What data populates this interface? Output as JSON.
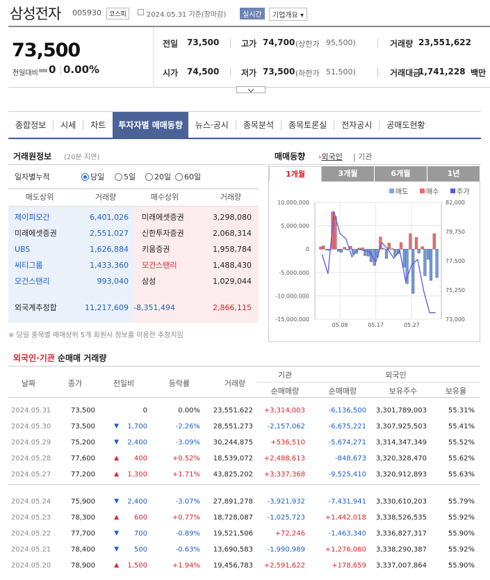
{
  "header": {
    "name": "삼성전자",
    "code": "005930",
    "market": "코스피",
    "date": "2024.05.31 기준(장마감)",
    "live": "실시간",
    "overview": "기업개요 ▾"
  },
  "quote": {
    "price": "73,500",
    "prev_label": "전일대비",
    "change": "0",
    "rate": "0.00%",
    "rows": [
      [
        {
          "label": "전일",
          "value": "73,500",
          "color": "normal"
        },
        {
          "label": "고가",
          "value": "74,700",
          "color": "up",
          "sub_label": "(상한가",
          "sub_value": "95,500)"
        },
        {
          "label": "거래량",
          "value": "23,551,622",
          "color": "normal"
        }
      ],
      [
        {
          "label": "시가",
          "value": "74,500",
          "color": "up"
        },
        {
          "label": "저가",
          "value": "73,500",
          "color": "normal",
          "sub_label": "(하한가",
          "sub_value": "51,500)"
        },
        {
          "label": "거래대금",
          "value": "1,741,228",
          "color": "normal",
          "unit": "백만"
        }
      ]
    ]
  },
  "tabs": [
    "종합정보",
    "시세",
    "차트",
    "투자자별 매매동향",
    "뉴스·공시",
    "종목분석",
    "종목토론실",
    "전자공시",
    "공매도현황"
  ],
  "active_tab": 3,
  "broker": {
    "title": "거래원정보",
    "note": "(20분 지연)",
    "accum_label": "일자별누적",
    "periods": [
      "당일",
      "5일",
      "20일",
      "60일"
    ],
    "selected_period": 0,
    "headers": [
      "매도상위",
      "거래량",
      "매수상위",
      "거래량"
    ],
    "rows": [
      {
        "sell": "제이피모간",
        "sell_vol": "6,401,026",
        "buy": "미래에셋증권",
        "buy_vol": "3,298,080",
        "sell_color": "dn",
        "buy_color": "normal"
      },
      {
        "sell": "미래에셋증권",
        "sell_vol": "2,551,027",
        "buy": "신한투자증권",
        "buy_vol": "2,068,314",
        "sell_color": "normal",
        "buy_color": "normal"
      },
      {
        "sell": "UBS",
        "sell_vol": "1,626,884",
        "buy": "키움증권",
        "buy_vol": "1,958,784",
        "sell_color": "dn",
        "buy_color": "normal"
      },
      {
        "sell": "씨티그룹",
        "sell_vol": "1,433,360",
        "buy": "모건스탠리",
        "buy_vol": "1,488,430",
        "sell_color": "dn",
        "buy_color": "up"
      },
      {
        "sell": "모건스탠리",
        "sell_vol": "993,040",
        "buy": "삼성",
        "buy_vol": "1,029,044",
        "sell_color": "dn",
        "buy_color": "normal"
      }
    ],
    "foreign_label": "외국계추정합",
    "foreign_sell": "11,217,609",
    "foreign_net": "-8,351,494",
    "foreign_buy": "2,866,115",
    "footnote": "※ 당일 종목별 매매상위 5개 회원사 정보를 이용한 추정치임"
  },
  "trend": {
    "title": "매매동향",
    "foreign_link": "외국인",
    "inst_link": "기관",
    "periods": [
      "1개월",
      "3개월",
      "6개월",
      "1년"
    ],
    "selected_period": 0,
    "legend": [
      {
        "name": "매도",
        "color": "#7aa7e8"
      },
      {
        "name": "매수",
        "color": "#ef6b6b"
      },
      {
        "name": "주가",
        "color": "#5a5ae0"
      }
    ],
    "colors": {
      "sell": "#6f9ae0",
      "buy": "#ef6b6b",
      "price": "#5a5ae0"
    }
  },
  "chart_data": {
    "type": "bar+line",
    "y_left": {
      "ticks": [
        "10,000,000",
        "5,000,000",
        "0",
        "-5,000,000",
        "-10,000,000",
        "-15,000,000"
      ],
      "range": [
        -15000000,
        10000000
      ]
    },
    "y_right": {
      "ticks": [
        "82,000",
        "79,750",
        "77,500",
        "75,250",
        "73,000"
      ],
      "range": [
        73000,
        82000
      ]
    },
    "x_ticks": [
      "05.08",
      "05.17",
      "05.27"
    ],
    "dates": [
      "05.02",
      "05.03",
      "05.07",
      "05.08",
      "05.09",
      "05.10",
      "05.13",
      "05.14",
      "05.16",
      "05.17",
      "05.20",
      "05.21",
      "05.22",
      "05.23",
      "05.24",
      "05.27",
      "05.28",
      "05.29",
      "05.30",
      "05.31"
    ],
    "series": [
      {
        "name": "기관",
        "values": [
          500000,
          -200000,
          8000000,
          -500000,
          400000,
          600000,
          -900000,
          300000,
          -1500000,
          -3500000,
          2600000,
          -2000000,
          72000,
          -1000000,
          -3900000,
          3300000,
          2500000,
          537000,
          -2200000,
          3300000
        ]
      },
      {
        "name": "외국인",
        "values": [
          700000,
          -300000,
          7000000,
          -700000,
          -200000,
          -1100000,
          200000,
          -1400000,
          -2700000,
          -1800000,
          200000,
          1300000,
          -1500000,
          1400000,
          -7400000,
          -9500000,
          -850000,
          -5700000,
          -6700000,
          -6100000
        ]
      },
      {
        "name": "주가",
        "values": [
          78000,
          76500,
          81300,
          79600,
          79200,
          77800,
          78400,
          78300,
          78200,
          77400,
          78900,
          78400,
          77700,
          78300,
          75900,
          77200,
          77600,
          75200,
          73500,
          73500
        ]
      }
    ]
  },
  "lower": {
    "title_foreign": "외국인",
    "title_dot": "·",
    "title_inst": "기관",
    "title_rest": "순매매 거래량",
    "headers": {
      "date": "날짜",
      "close": "종가",
      "change": "전일비",
      "rate": "등락률",
      "volume": "거래량",
      "inst": "기관",
      "inst_net": "순매매량",
      "foreign": "외국인",
      "foreign_net": "순매매량",
      "foreign_hold": "보유주수",
      "foreign_ratio": "보유율"
    },
    "rows": [
      {
        "date": "2024.05.31",
        "close": "73,500",
        "arrow": "",
        "chg": "0",
        "dir": "none",
        "rate": "0.00%",
        "vol": "23,551,622",
        "inst": "+3,314,003",
        "frg": "-6,136,500",
        "hold": "3,301,789,003",
        "ratio": "55.31%"
      },
      {
        "date": "2024.05.30",
        "close": "73,500",
        "arrow": "▼",
        "chg": "1,700",
        "dir": "dn",
        "rate": "-2.26%",
        "vol": "28,551,273",
        "inst": "-2,157,062",
        "frg": "-6,675,221",
        "hold": "3,307,925,503",
        "ratio": "55.41%"
      },
      {
        "date": "2024.05.29",
        "close": "75,200",
        "arrow": "▼",
        "chg": "2,400",
        "dir": "dn",
        "rate": "-3.09%",
        "vol": "30,244,875",
        "inst": "+536,510",
        "frg": "-5,674,271",
        "hold": "3,314,347,349",
        "ratio": "55.52%"
      },
      {
        "date": "2024.05.28",
        "close": "77,600",
        "arrow": "▲",
        "chg": "400",
        "dir": "up",
        "rate": "+0.52%",
        "vol": "18,539,072",
        "inst": "+2,488,613",
        "frg": "-848,673",
        "hold": "3,320,328,470",
        "ratio": "55.62%"
      },
      {
        "date": "2024.05.27",
        "close": "77,200",
        "arrow": "▲",
        "chg": "1,300",
        "dir": "up",
        "rate": "+1.71%",
        "vol": "43,825,202",
        "inst": "+3,337,368",
        "frg": "-9,525,410",
        "hold": "3,320,912,893",
        "ratio": "55.63%"
      },
      {
        "date": "2024.05.24",
        "close": "75,900",
        "arrow": "▼",
        "chg": "2,400",
        "dir": "dn",
        "rate": "-3.07%",
        "vol": "27,891,278",
        "inst": "-3,921,932",
        "frg": "-7,431,941",
        "hold": "3,330,610,203",
        "ratio": "55.79%"
      },
      {
        "date": "2024.05.23",
        "close": "78,300",
        "arrow": "▲",
        "chg": "600",
        "dir": "up",
        "rate": "+0.77%",
        "vol": "18,728,087",
        "inst": "-1,025,723",
        "frg": "+1,442,018",
        "hold": "3,338,526,535",
        "ratio": "55.92%"
      },
      {
        "date": "2024.05.22",
        "close": "77,700",
        "arrow": "▼",
        "chg": "700",
        "dir": "dn",
        "rate": "-0.89%",
        "vol": "19,521,506",
        "inst": "+72,246",
        "frg": "-1,463,340",
        "hold": "3,336,827,317",
        "ratio": "55.90%"
      },
      {
        "date": "2024.05.21",
        "close": "78,400",
        "arrow": "▼",
        "chg": "500",
        "dir": "dn",
        "rate": "-0.63%",
        "vol": "13,690,583",
        "inst": "-1,990,989",
        "frg": "+1,276,060",
        "hold": "3,338,290,387",
        "ratio": "55.92%"
      },
      {
        "date": "2024.05.20",
        "close": "78,900",
        "arrow": "▲",
        "chg": "1,500",
        "dir": "up",
        "rate": "+1.94%",
        "vol": "19,456,783",
        "inst": "+2,591,622",
        "frg": "+178,659",
        "hold": "3,337,007,864",
        "ratio": "55.90%"
      }
    ]
  }
}
